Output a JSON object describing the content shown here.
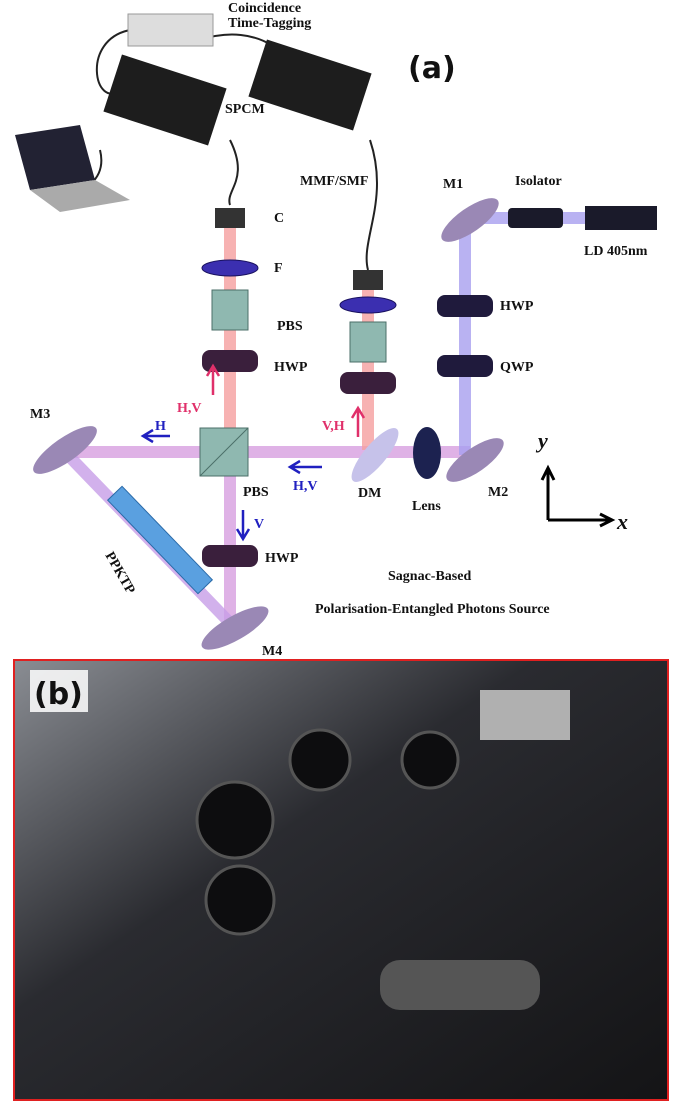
{
  "panel_a": {
    "label": "(a)",
    "coincidence": "Coincidence",
    "time_tagging": "Time-Tagging",
    "spcm": "SPCM",
    "fiber": "MMF/SMF",
    "collimator": "C",
    "filter": "F",
    "pbs_top": "PBS",
    "hwp_top": "HWP",
    "m1": "M1",
    "isolator": "Isolator",
    "laser": "LD 405nm",
    "hwp_right": "HWP",
    "qwp": "QWP",
    "m3": "M3",
    "h_left": "H",
    "hv_up": "H,V",
    "vh_up": "V,H",
    "hv_left": "H,V",
    "pbs_center": "PBS",
    "dm": "DM",
    "lens": "Lens",
    "m2": "M2",
    "axis_y": "y",
    "axis_x": "x",
    "v_down": "V",
    "hwp_bottom": "HWP",
    "crystal": "PPKTP",
    "caption_1": "Sagnac-Based",
    "caption_2": "Polarisation-Entangled Photons Source",
    "m4": "M4"
  },
  "panel_b": {
    "label": "(b)"
  }
}
